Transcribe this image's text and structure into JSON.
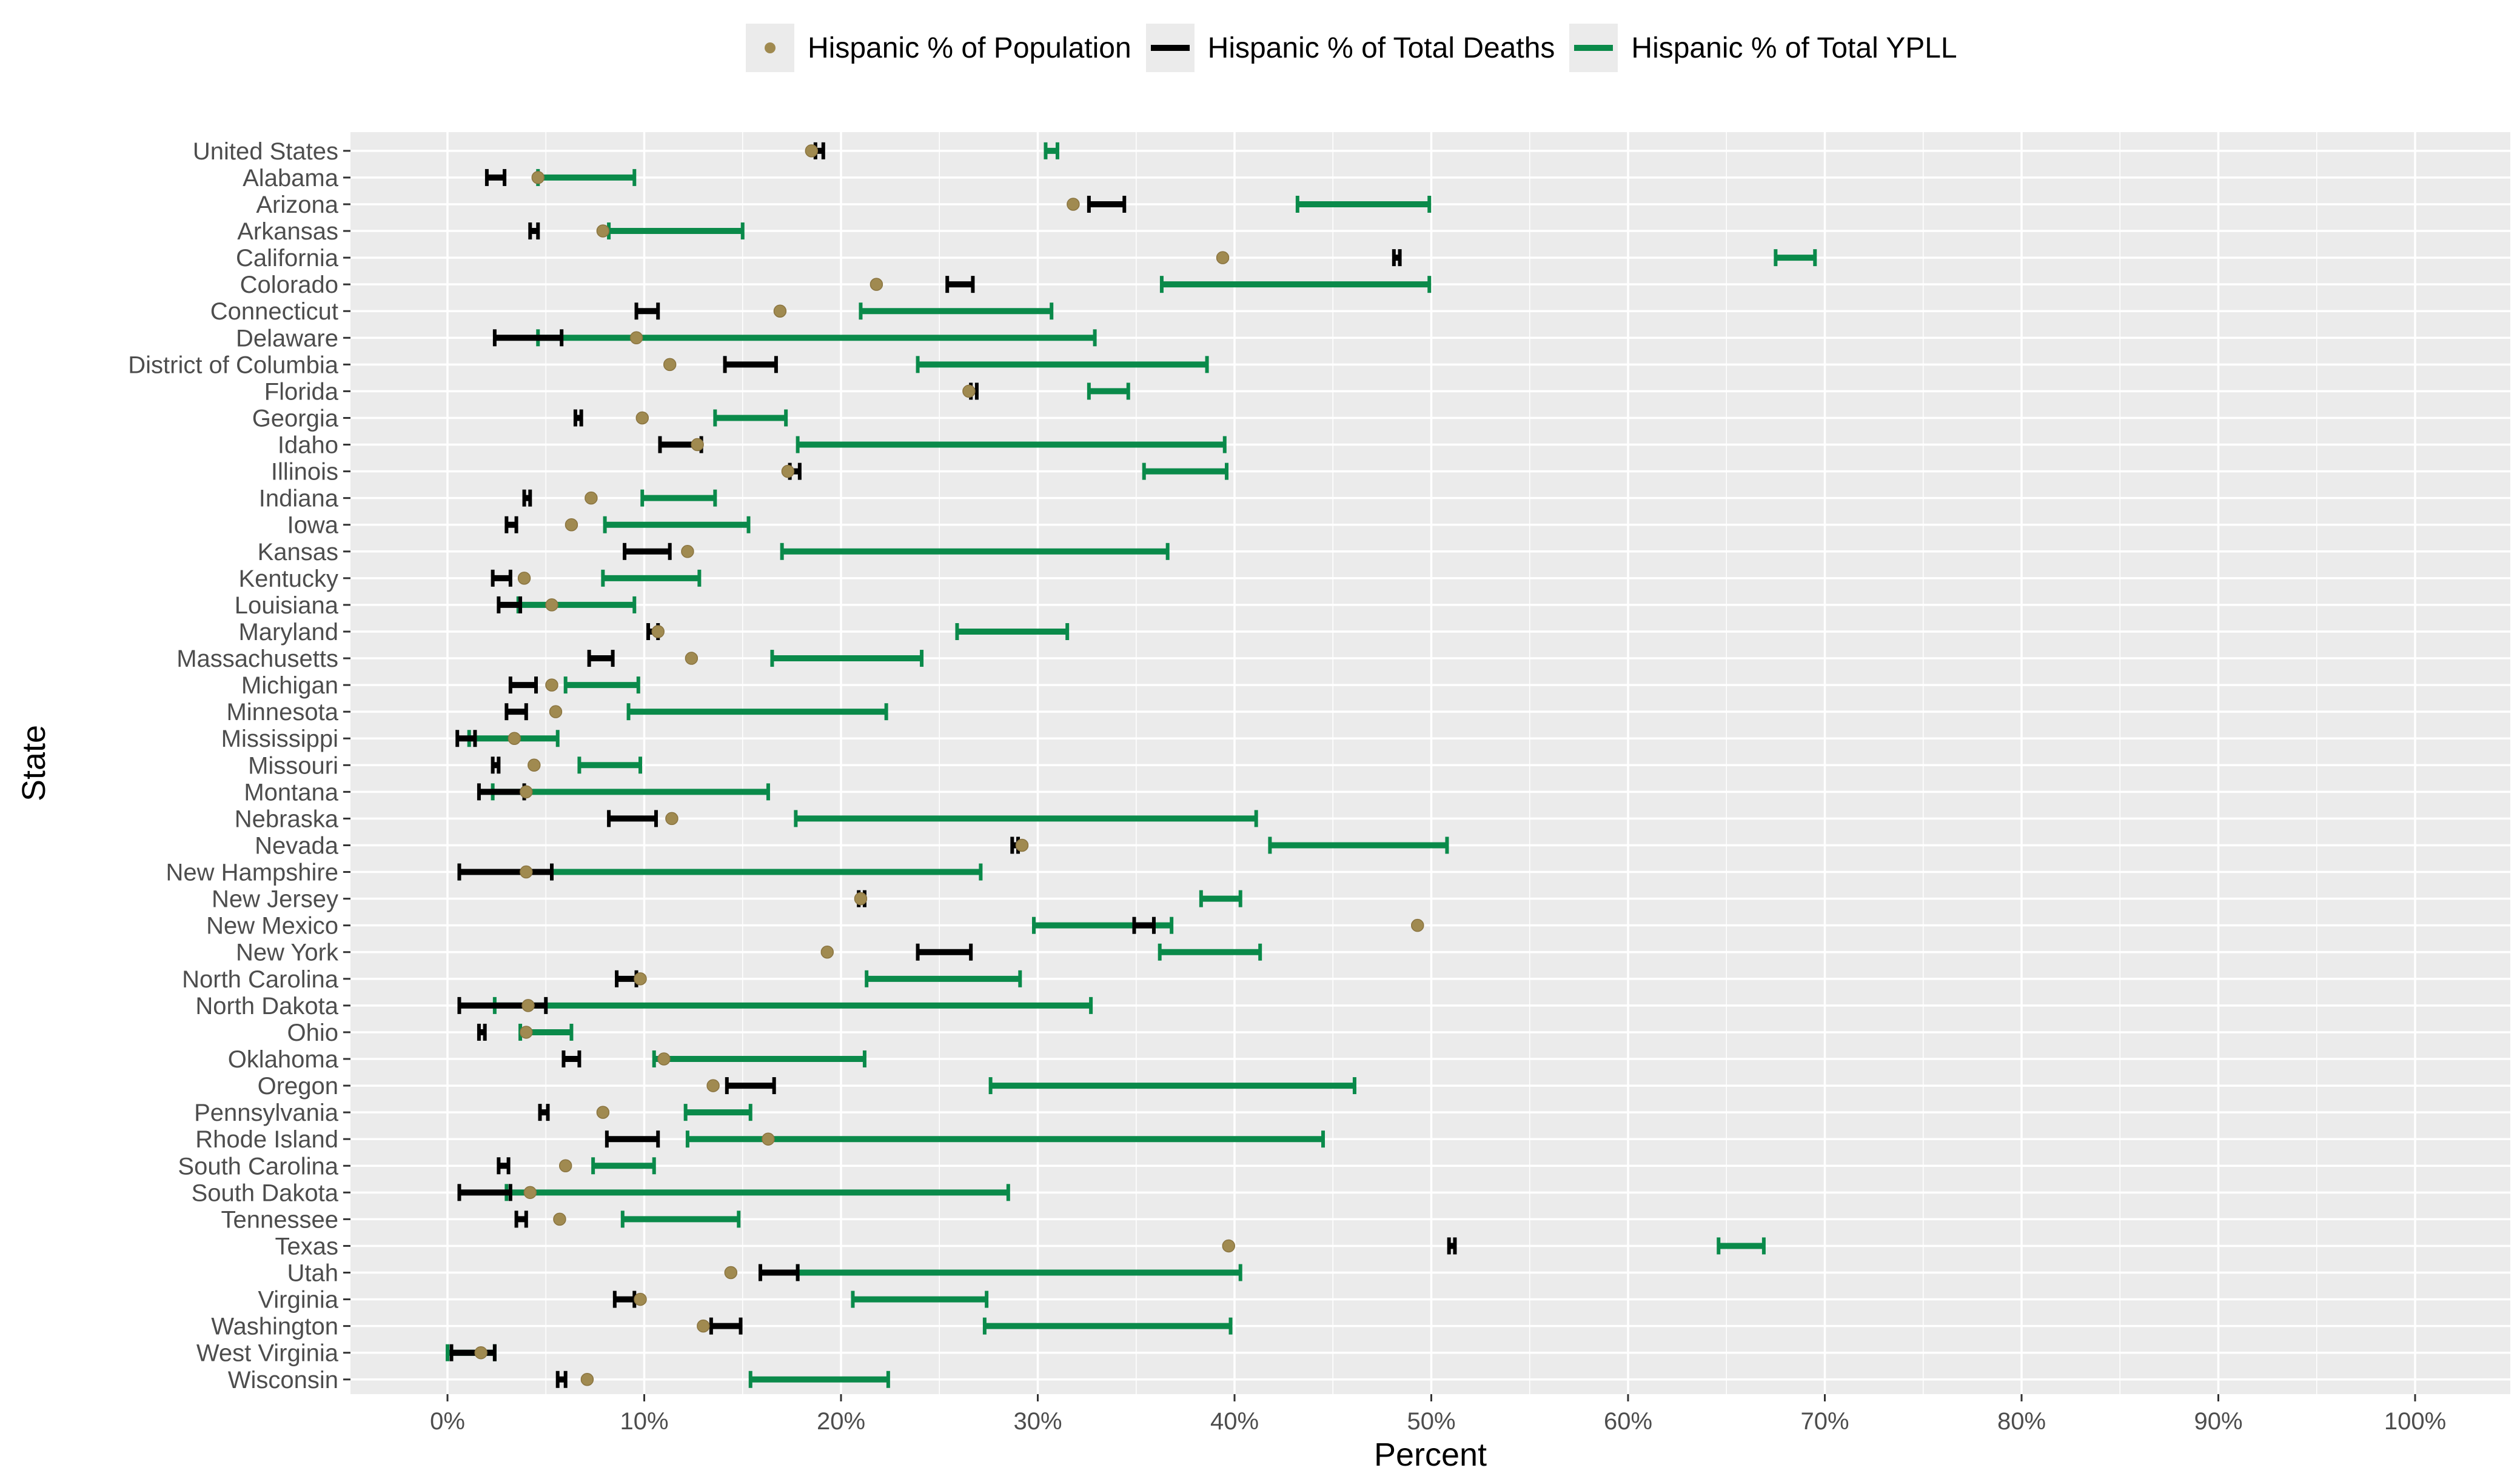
{
  "chart_data": {
    "type": "range",
    "xlabel": "Percent",
    "ylabel": "State",
    "xlim": [
      -5,
      105
    ],
    "x_ticks": [
      0,
      10,
      20,
      30,
      40,
      50,
      60,
      70,
      80,
      90,
      100
    ],
    "x_tick_labels": [
      "0%",
      "10%",
      "20%",
      "30%",
      "40%",
      "50%",
      "60%",
      "70%",
      "80%",
      "90%",
      "100%"
    ],
    "legend": {
      "position": "top",
      "population_label": "Hispanic % of Population",
      "deaths_label": "Hispanic % of Total Deaths",
      "ypll_label": "Hispanic % of Total YPLL"
    },
    "colors": {
      "population": "#a08a50",
      "deaths": "#000000",
      "ypll": "#0a8a4a",
      "panel": "#ebebeb",
      "grid": "#ffffff"
    },
    "states": [
      {
        "name": "United States",
        "population": 18.5,
        "deaths": [
          18.7,
          19.1
        ],
        "ypll": [
          30.4,
          31.0
        ]
      },
      {
        "name": "Alabama",
        "population": 4.6,
        "deaths": [
          2.0,
          2.9
        ],
        "ypll": [
          4.6,
          9.5
        ]
      },
      {
        "name": "Arizona",
        "population": 31.8,
        "deaths": [
          32.6,
          34.4
        ],
        "ypll": [
          43.2,
          49.9
        ]
      },
      {
        "name": "Arkansas",
        "population": 7.9,
        "deaths": [
          4.2,
          4.6
        ],
        "ypll": [
          8.2,
          15.0
        ]
      },
      {
        "name": "California",
        "population": 39.4,
        "deaths": [
          48.1,
          48.4
        ],
        "ypll": [
          67.5,
          69.5
        ]
      },
      {
        "name": "Colorado",
        "population": 21.8,
        "deaths": [
          25.4,
          26.7
        ],
        "ypll": [
          36.3,
          49.9
        ]
      },
      {
        "name": "Connecticut",
        "population": 16.9,
        "deaths": [
          9.6,
          10.7
        ],
        "ypll": [
          21.0,
          30.7
        ]
      },
      {
        "name": "Delaware",
        "population": 9.6,
        "deaths": [
          2.4,
          5.8
        ],
        "ypll": [
          4.6,
          32.9
        ]
      },
      {
        "name": "District of Columbia",
        "population": 11.3,
        "deaths": [
          14.1,
          16.7
        ],
        "ypll": [
          23.9,
          38.6
        ]
      },
      {
        "name": "Florida",
        "population": 26.5,
        "deaths": [
          26.6,
          26.9
        ],
        "ypll": [
          32.6,
          34.6
        ]
      },
      {
        "name": "Georgia",
        "population": 9.9,
        "deaths": [
          6.5,
          6.8
        ],
        "ypll": [
          13.6,
          17.2
        ]
      },
      {
        "name": "Idaho",
        "population": 12.7,
        "deaths": [
          10.8,
          12.9
        ],
        "ypll": [
          17.8,
          39.5
        ]
      },
      {
        "name": "Illinois",
        "population": 17.3,
        "deaths": [
          17.4,
          17.9
        ],
        "ypll": [
          35.4,
          39.6
        ]
      },
      {
        "name": "Indiana",
        "population": 7.3,
        "deaths": [
          3.9,
          4.2
        ],
        "ypll": [
          9.9,
          13.6
        ]
      },
      {
        "name": "Iowa",
        "population": 6.3,
        "deaths": [
          3.0,
          3.5
        ],
        "ypll": [
          8.0,
          15.3
        ]
      },
      {
        "name": "Kansas",
        "population": 12.2,
        "deaths": [
          9.0,
          11.3
        ],
        "ypll": [
          17.0,
          36.6
        ]
      },
      {
        "name": "Kentucky",
        "population": 3.9,
        "deaths": [
          2.3,
          3.2
        ],
        "ypll": [
          7.9,
          12.8
        ]
      },
      {
        "name": "Louisiana",
        "population": 5.3,
        "deaths": [
          2.6,
          3.7
        ],
        "ypll": [
          3.6,
          9.5
        ]
      },
      {
        "name": "Maryland",
        "population": 10.7,
        "deaths": [
          10.2,
          10.7
        ],
        "ypll": [
          25.9,
          31.5
        ]
      },
      {
        "name": "Massachusetts",
        "population": 12.4,
        "deaths": [
          7.2,
          8.4
        ],
        "ypll": [
          16.5,
          24.1
        ]
      },
      {
        "name": "Michigan",
        "population": 5.3,
        "deaths": [
          3.2,
          4.5
        ],
        "ypll": [
          6.0,
          9.7
        ]
      },
      {
        "name": "Minnesota",
        "population": 5.5,
        "deaths": [
          3.0,
          4.0
        ],
        "ypll": [
          9.2,
          22.3
        ]
      },
      {
        "name": "Mississippi",
        "population": 3.4,
        "deaths": [
          0.5,
          1.4
        ],
        "ypll": [
          1.1,
          5.6
        ]
      },
      {
        "name": "Missouri",
        "population": 4.4,
        "deaths": [
          2.3,
          2.6
        ],
        "ypll": [
          6.7,
          9.8
        ]
      },
      {
        "name": "Montana",
        "population": 4.0,
        "deaths": [
          1.6,
          3.9
        ],
        "ypll": [
          2.3,
          16.3
        ]
      },
      {
        "name": "Nebraska",
        "population": 11.4,
        "deaths": [
          8.2,
          10.6
        ],
        "ypll": [
          17.7,
          41.1
        ]
      },
      {
        "name": "Nevada",
        "population": 29.2,
        "deaths": [
          28.7,
          29.0
        ],
        "ypll": [
          41.8,
          50.8
        ]
      },
      {
        "name": "New Hampshire",
        "population": 4.0,
        "deaths": [
          0.6,
          5.3
        ],
        "ypll": [
          0.6,
          27.1
        ]
      },
      {
        "name": "New Jersey",
        "population": 21.0,
        "deaths": [
          20.9,
          21.2
        ],
        "ypll": [
          38.3,
          40.3
        ]
      },
      {
        "name": "New Mexico",
        "population": 49.3,
        "deaths": [
          34.9,
          35.9
        ],
        "ypll": [
          29.8,
          36.8
        ]
      },
      {
        "name": "New York",
        "population": 19.3,
        "deaths": [
          23.9,
          26.6
        ],
        "ypll": [
          36.2,
          41.3
        ]
      },
      {
        "name": "North Carolina",
        "population": 9.8,
        "deaths": [
          8.6,
          9.6
        ],
        "ypll": [
          21.3,
          29.1
        ]
      },
      {
        "name": "North Dakota",
        "population": 4.1,
        "deaths": [
          0.6,
          5.0
        ],
        "ypll": [
          2.4,
          32.7
        ]
      },
      {
        "name": "Ohio",
        "population": 4.0,
        "deaths": [
          1.6,
          1.9
        ],
        "ypll": [
          3.7,
          6.3
        ]
      },
      {
        "name": "Oklahoma",
        "population": 11.0,
        "deaths": [
          5.9,
          6.7
        ],
        "ypll": [
          10.5,
          21.2
        ]
      },
      {
        "name": "Oregon",
        "population": 13.5,
        "deaths": [
          14.2,
          16.6
        ],
        "ypll": [
          27.6,
          46.1
        ]
      },
      {
        "name": "Pennsylvania",
        "population": 7.9,
        "deaths": [
          4.7,
          5.1
        ],
        "ypll": [
          12.1,
          15.4
        ]
      },
      {
        "name": "Rhode Island",
        "population": 16.3,
        "deaths": [
          8.1,
          10.7
        ],
        "ypll": [
          12.2,
          44.5
        ]
      },
      {
        "name": "South Carolina",
        "population": 6.0,
        "deaths": [
          2.6,
          3.1
        ],
        "ypll": [
          7.4,
          10.5
        ]
      },
      {
        "name": "South Dakota",
        "population": 4.2,
        "deaths": [
          0.6,
          3.2
        ],
        "ypll": [
          3.0,
          28.5
        ]
      },
      {
        "name": "Tennessee",
        "population": 5.7,
        "deaths": [
          3.5,
          4.0
        ],
        "ypll": [
          8.9,
          14.8
        ]
      },
      {
        "name": "Texas",
        "population": 39.7,
        "deaths": [
          50.9,
          51.2
        ],
        "ypll": [
          64.6,
          66.9
        ]
      },
      {
        "name": "Utah",
        "population": 14.4,
        "deaths": [
          15.9,
          17.8
        ],
        "ypll": [
          17.8,
          40.3
        ]
      },
      {
        "name": "Virginia",
        "population": 9.8,
        "deaths": [
          8.5,
          9.5
        ],
        "ypll": [
          20.6,
          27.4
        ]
      },
      {
        "name": "Washington",
        "population": 13.0,
        "deaths": [
          13.4,
          14.9
        ],
        "ypll": [
          27.3,
          39.8
        ]
      },
      {
        "name": "West Virginia",
        "population": 1.7,
        "deaths": [
          0.2,
          2.4
        ],
        "ypll": [
          0.0,
          2.4
        ]
      },
      {
        "name": "Wisconsin",
        "population": 7.1,
        "deaths": [
          5.6,
          6.0
        ],
        "ypll": [
          15.4,
          22.4
        ]
      }
    ]
  }
}
